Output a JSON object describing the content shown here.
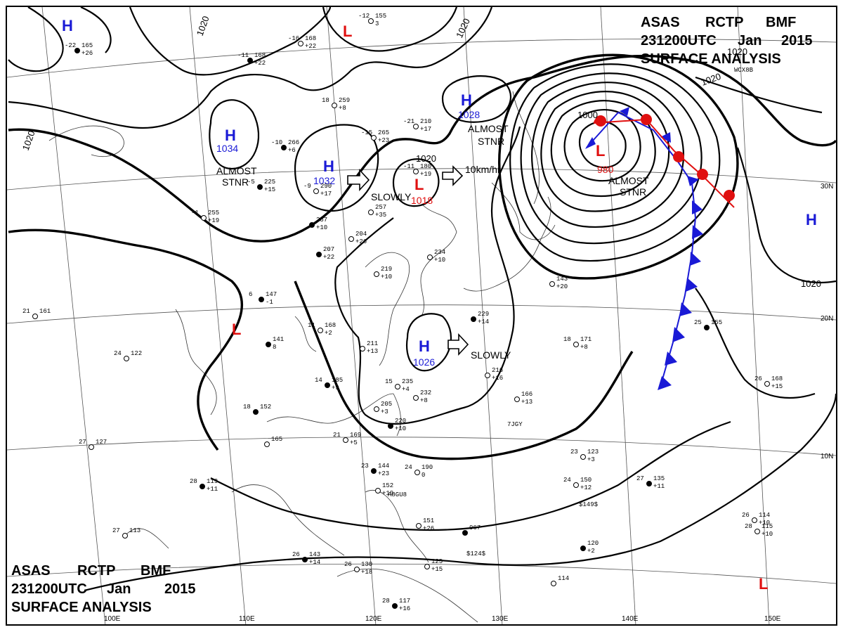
{
  "header": {
    "line1": [
      "ASAS",
      "RCTP",
      "BMF"
    ],
    "line2": [
      "231200UTC",
      "Jan",
      "2015"
    ],
    "line3": "SURFACE ANALYSIS"
  },
  "pressure_systems": [
    {
      "type": "H",
      "value": ""
    },
    {
      "type": "L",
      "value": ""
    },
    {
      "type": "H",
      "value": "1034"
    },
    {
      "type": "H",
      "value": "1032"
    },
    {
      "type": "L",
      "value": "1018"
    },
    {
      "type": "H",
      "value": "1028"
    },
    {
      "type": "L",
      "value": "980"
    },
    {
      "type": "H",
      "value": ""
    },
    {
      "type": "L",
      "value": ""
    },
    {
      "type": "H",
      "value": "1026"
    },
    {
      "type": "L",
      "value": ""
    }
  ],
  "annotations": {
    "almost": "ALMOST",
    "stnr": "STNR",
    "slowly": "SLOWLY",
    "speed": "10km/hr"
  },
  "isobar_labels": [
    "1020",
    "1020",
    "1020",
    "1020",
    "1020",
    "1000",
    "1020",
    "1020"
  ],
  "longitudes": [
    "100E",
    "110E",
    "120E",
    "130E",
    "140E",
    "150E"
  ],
  "latitudes": [
    "30N",
    "20N",
    "10N"
  ],
  "stations": [
    {
      "id": "s1",
      "t": "-22",
      "p": "165",
      "c": "+26"
    },
    {
      "id": "s2",
      "t": "-12",
      "p": "155",
      "c": "3"
    },
    {
      "id": "s3",
      "t": "-16",
      "p": "168",
      "c": "+22"
    },
    {
      "id": "s4",
      "t": "-11",
      "p": "168",
      "c": "+22"
    },
    {
      "id": "s5",
      "t": "18",
      "p": "259",
      "c": "+8"
    },
    {
      "id": "s6",
      "t": "-21",
      "p": "210",
      "c": "+17"
    },
    {
      "id": "s7",
      "t": "-10",
      "p": "266",
      "c": "+6"
    },
    {
      "id": "s8",
      "t": "-15",
      "p": "265",
      "c": "+23"
    },
    {
      "id": "s9",
      "t": "-11",
      "p": "180",
      "c": "+19"
    },
    {
      "id": "s10",
      "t": "-5",
      "p": "225",
      "c": "+15"
    },
    {
      "id": "s11",
      "t": "-9",
      "p": "290",
      "c": "+17"
    },
    {
      "id": "s12",
      "t": "-1",
      "p": "255",
      "c": "+19"
    },
    {
      "id": "s13",
      "t": "",
      "p": "257",
      "c": "+10"
    },
    {
      "id": "s14",
      "t": "",
      "p": "257",
      "c": "+35"
    },
    {
      "id": "s15",
      "t": "",
      "p": "204",
      "c": "+26"
    },
    {
      "id": "s16",
      "t": "",
      "p": "207",
      "c": "+22"
    },
    {
      "id": "s17",
      "t": "",
      "p": "219",
      "c": "+10"
    },
    {
      "id": "s18",
      "t": "",
      "p": "234",
      "c": "+10"
    },
    {
      "id": "s19",
      "t": "6",
      "p": "147",
      "c": "-1"
    },
    {
      "id": "s20",
      "t": "21",
      "p": "161",
      "c": ""
    },
    {
      "id": "s21",
      "t": "11",
      "p": "168",
      "c": "+2"
    },
    {
      "id": "s22",
      "t": "",
      "p": "141",
      "c": "8"
    },
    {
      "id": "s23",
      "t": "24",
      "p": "122",
      "c": ""
    },
    {
      "id": "s24",
      "t": "",
      "p": "211",
      "c": "+13"
    },
    {
      "id": "s25",
      "t": "14",
      "p": "185",
      "c": "+9"
    },
    {
      "id": "s26",
      "t": "15",
      "p": "235",
      "c": "+4"
    },
    {
      "id": "s27",
      "t": "",
      "p": "205",
      "c": "+3"
    },
    {
      "id": "s28",
      "t": "",
      "p": "220",
      "c": "+10"
    },
    {
      "id": "s29",
      "t": "",
      "p": "232",
      "c": "+8"
    },
    {
      "id": "s30",
      "t": "",
      "p": "216",
      "c": "+16"
    },
    {
      "id": "s31",
      "t": "",
      "p": "229",
      "c": "+14"
    },
    {
      "id": "s32",
      "t": "",
      "p": "143",
      "c": "+20"
    },
    {
      "id": "s33",
      "t": "18",
      "p": "171",
      "c": "+8"
    },
    {
      "id": "s34",
      "t": "25",
      "p": "155",
      "c": ""
    },
    {
      "id": "s35",
      "t": "26",
      "p": "168",
      "c": "+15"
    },
    {
      "id": "s36",
      "t": "",
      "p": "166",
      "c": "+13"
    },
    {
      "id": "s37",
      "t": "18",
      "p": "152",
      "c": ""
    },
    {
      "id": "s38",
      "t": "",
      "p": "165",
      "c": ""
    },
    {
      "id": "s39",
      "t": "21",
      "p": "169",
      "c": "+5"
    },
    {
      "id": "s40",
      "t": "23",
      "p": "144",
      "c": "+23"
    },
    {
      "id": "s41",
      "t": "24",
      "p": "190",
      "c": "0"
    },
    {
      "id": "s42",
      "t": "",
      "p": "152",
      "c": "+19"
    },
    {
      "id": "s43",
      "t": "28",
      "p": "119",
      "c": "+11"
    },
    {
      "id": "s44",
      "t": "27",
      "p": "127",
      "c": ""
    },
    {
      "id": "s45",
      "t": "27",
      "p": "113",
      "c": ""
    },
    {
      "id": "s46",
      "t": "26",
      "p": "143",
      "c": "+14"
    },
    {
      "id": "s47",
      "t": "26",
      "p": "130",
      "c": "+18"
    },
    {
      "id": "s48",
      "t": "",
      "p": "151",
      "c": "+26"
    },
    {
      "id": "s49",
      "t": "",
      "p": "067",
      "c": ""
    },
    {
      "id": "s50",
      "t": "",
      "p": "125",
      "c": "+15"
    },
    {
      "id": "s51",
      "t": "",
      "p": "114",
      "c": ""
    },
    {
      "id": "s52",
      "t": "28",
      "p": "117",
      "c": "+16"
    },
    {
      "id": "s53",
      "t": "23",
      "p": "123",
      "c": "+3"
    },
    {
      "id": "s54",
      "t": "24",
      "p": "150",
      "c": "+12"
    },
    {
      "id": "s55",
      "t": "27",
      "p": "135",
      "c": "+11"
    },
    {
      "id": "s56",
      "t": "26",
      "p": "114",
      "c": "+10"
    },
    {
      "id": "s57",
      "t": "28",
      "p": "115",
      "c": "+10"
    },
    {
      "id": "s58",
      "t": "",
      "p": "120",
      "c": "+2"
    }
  ],
  "ship_codes": [
    "$149$",
    "$124$",
    "7JGY",
    "A8GU8",
    "WCX8B"
  ]
}
